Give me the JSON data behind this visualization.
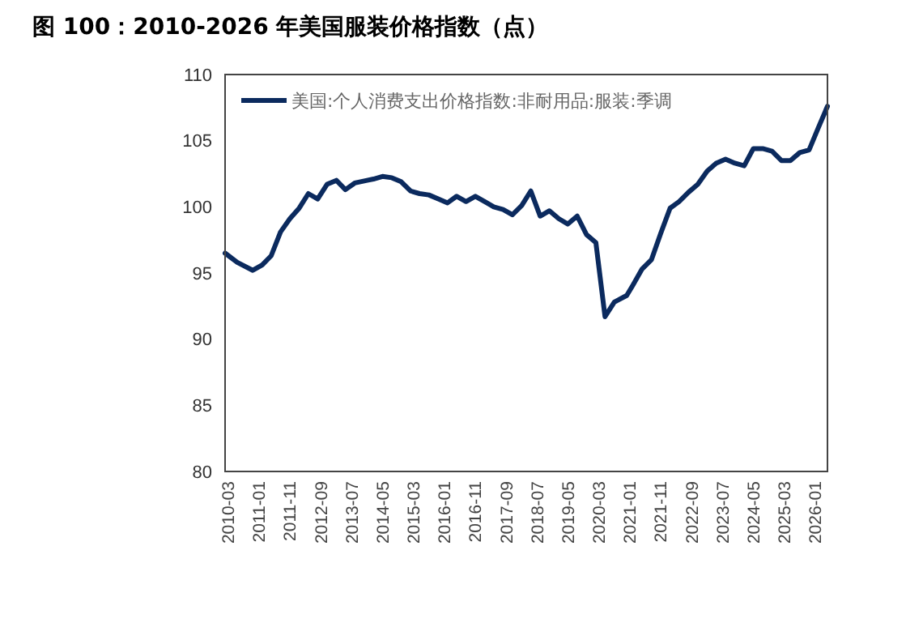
{
  "chart_data": {
    "type": "line",
    "title": "图 100：2010-2026 年美国服装价格指数（点）",
    "legend": "top left",
    "grid": false,
    "marker": "none",
    "line_style": "solid",
    "xlim": [
      "2010-02",
      "2026-05"
    ],
    "ylim": [
      80,
      110
    ],
    "yticks": [
      80,
      85,
      90,
      95,
      100,
      105,
      110
    ],
    "xticks": [
      "2010-03",
      "2011-01",
      "2011-11",
      "2012-09",
      "2013-07",
      "2014-05",
      "2015-03",
      "2016-01",
      "2016-11",
      "2017-09",
      "2018-07",
      "2019-05",
      "2020-03",
      "2021-01",
      "2021-11",
      "2022-09",
      "2023-07",
      "2024-05",
      "2025-03",
      "2026-01"
    ],
    "x": [
      "2010-02",
      "2010-06",
      "2010-11",
      "2011-02",
      "2011-05",
      "2011-08",
      "2011-11",
      "2012-02",
      "2012-05",
      "2012-08",
      "2012-11",
      "2013-02",
      "2013-05",
      "2013-08",
      "2013-12",
      "2014-02",
      "2014-05",
      "2014-08",
      "2014-11",
      "2015-02",
      "2015-05",
      "2015-08",
      "2015-11",
      "2016-02",
      "2016-05",
      "2016-08",
      "2016-11",
      "2017-02",
      "2017-05",
      "2017-08",
      "2017-11",
      "2018-02",
      "2018-05",
      "2018-08",
      "2018-11",
      "2019-02",
      "2019-05",
      "2019-08",
      "2019-11",
      "2020-02",
      "2020-05",
      "2020-08",
      "2020-12",
      "2021-02",
      "2021-05",
      "2021-08",
      "2021-11",
      "2022-02",
      "2022-05",
      "2022-08",
      "2022-11",
      "2023-02",
      "2023-05",
      "2023-08",
      "2023-11",
      "2024-02",
      "2024-05",
      "2024-08",
      "2024-11",
      "2025-02",
      "2025-05",
      "2025-08",
      "2025-11",
      "2026-02",
      "2026-05"
    ],
    "series": [
      {
        "name": "美国:个人消费支出价格指数:非耐用品:服装:季调",
        "color": "#0b2a5e",
        "values": [
          96.5,
          95.8,
          95.2,
          95.6,
          96.3,
          98.1,
          99.1,
          99.9,
          101.0,
          100.6,
          101.7,
          102.0,
          101.3,
          101.8,
          102.0,
          102.1,
          102.3,
          102.2,
          101.9,
          101.2,
          101.0,
          100.9,
          100.6,
          100.3,
          100.8,
          100.4,
          100.8,
          100.4,
          100.0,
          99.8,
          99.4,
          100.1,
          101.2,
          99.3,
          99.7,
          99.1,
          98.7,
          99.3,
          97.9,
          97.3,
          91.7,
          92.8,
          93.3,
          94.1,
          95.3,
          96.0,
          98.0,
          99.9,
          100.4,
          101.1,
          101.7,
          102.7,
          103.3,
          103.6,
          103.3,
          103.1,
          104.4,
          104.4,
          104.2,
          103.5,
          103.5,
          104.1,
          104.3,
          106.0,
          107.6
        ]
      }
    ]
  }
}
